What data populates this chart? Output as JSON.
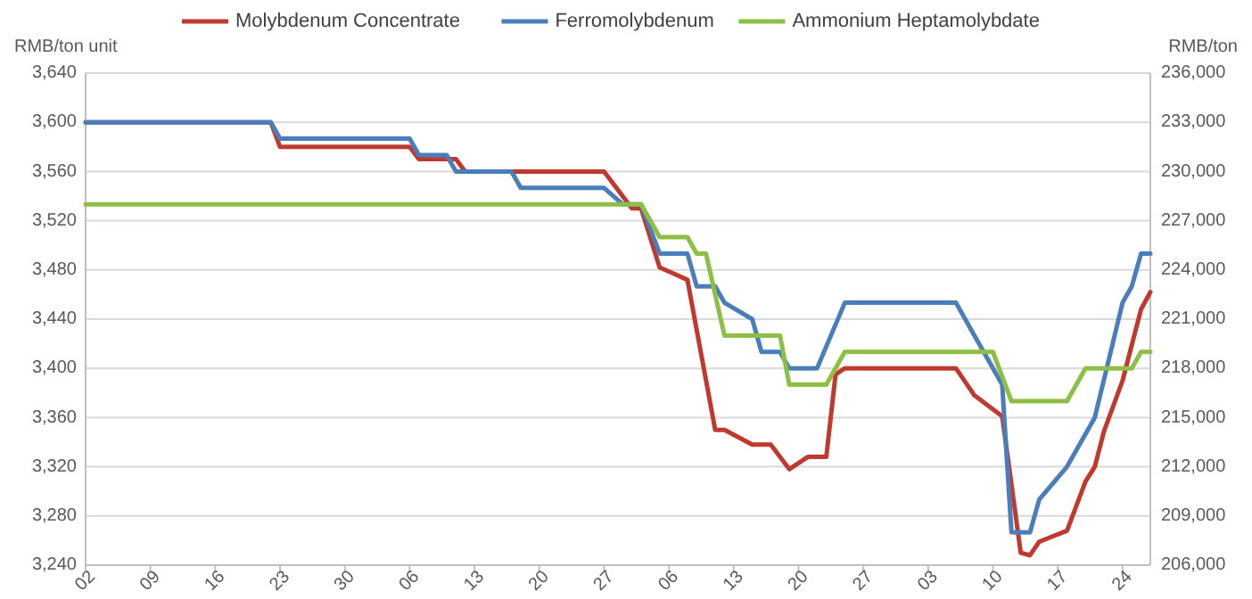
{
  "chart_data": {
    "type": "line",
    "ylabel": "RMB/ton unit",
    "y2label": "RMB/ton",
    "legend": "top",
    "grid": "y",
    "line_style": "solid",
    "marker": "none",
    "xlim": [
      "--01-02",
      "--04-27"
    ],
    "xticks": [
      {
        "value": "--01-02",
        "label": "02"
      },
      {
        "value": "--01-09",
        "label": "09"
      },
      {
        "value": "--01-16",
        "label": "16"
      },
      {
        "value": "--01-23",
        "label": "23"
      },
      {
        "value": "--01-30",
        "label": "30"
      },
      {
        "value": "--02-06",
        "label": "06"
      },
      {
        "value": "--02-13",
        "label": "13"
      },
      {
        "value": "--02-20",
        "label": "20"
      },
      {
        "value": "--02-27",
        "label": "27"
      },
      {
        "value": "--03-06",
        "label": "06"
      },
      {
        "value": "--03-13",
        "label": "13"
      },
      {
        "value": "--03-20",
        "label": "20"
      },
      {
        "value": "--03-27",
        "label": "27"
      },
      {
        "value": "--04-03",
        "label": "03"
      },
      {
        "value": "--04-10",
        "label": "10"
      },
      {
        "value": "--04-17",
        "label": "17"
      },
      {
        "value": "--04-24",
        "label": "24"
      }
    ],
    "ylim": [
      3240,
      3640
    ],
    "yticks": [
      {
        "value": 3240,
        "label": "3,240"
      },
      {
        "value": 3280,
        "label": "3,280"
      },
      {
        "value": 3320,
        "label": "3,320"
      },
      {
        "value": 3360,
        "label": "3,360"
      },
      {
        "value": 3400,
        "label": "3,400"
      },
      {
        "value": 3440,
        "label": "3,440"
      },
      {
        "value": 3480,
        "label": "3,480"
      },
      {
        "value": 3520,
        "label": "3,520"
      },
      {
        "value": 3560,
        "label": "3,560"
      },
      {
        "value": 3600,
        "label": "3,600"
      },
      {
        "value": 3640,
        "label": "3,640"
      }
    ],
    "y2lim": [
      206000,
      236000
    ],
    "y2ticks": [
      {
        "value": 206000,
        "label": "206,000"
      },
      {
        "value": 209000,
        "label": "209,000"
      },
      {
        "value": 212000,
        "label": "212,000"
      },
      {
        "value": 215000,
        "label": "215,000"
      },
      {
        "value": 218000,
        "label": "218,000"
      },
      {
        "value": 221000,
        "label": "221,000"
      },
      {
        "value": 224000,
        "label": "224,000"
      },
      {
        "value": 227000,
        "label": "227,000"
      },
      {
        "value": 230000,
        "label": "230,000"
      },
      {
        "value": 233000,
        "label": "233,000"
      },
      {
        "value": 236000,
        "label": "236,000"
      }
    ],
    "series": [
      {
        "name": "Molybdenum Concentrate",
        "color": "#c0392f",
        "axis": "y",
        "x": [
          "--01-02",
          "--01-22",
          "--01-23",
          "--02-06",
          "--02-07",
          "--02-11",
          "--02-12",
          "--02-27",
          "--03-02",
          "--03-03",
          "--03-05",
          "--03-08",
          "--03-11",
          "--03-12",
          "--03-15",
          "--03-17",
          "--03-19",
          "--03-21",
          "--03-23",
          "--03-24",
          "--03-25",
          "--04-06",
          "--04-08",
          "--04-11",
          "--04-13",
          "--04-14",
          "--04-15",
          "--04-18",
          "--04-20",
          "--04-21",
          "--04-22",
          "--04-24",
          "--04-26",
          "--04-27"
        ],
        "values": [
          3600,
          3600,
          3580,
          3580,
          3570,
          3570,
          3560,
          3560,
          3530,
          3530,
          3482,
          3472,
          3350,
          3350,
          3338,
          3338,
          3318,
          3328,
          3328,
          3395,
          3400,
          3400,
          3378,
          3361,
          3250,
          3248,
          3259,
          3268,
          3308,
          3320,
          3349,
          3390,
          3448,
          3462
        ]
      },
      {
        "name": "Ferromolybdenum",
        "color": "#4a7ebb",
        "axis": "y2",
        "x": [
          "--01-02",
          "--01-22",
          "--01-23",
          "--02-06",
          "--02-07",
          "--02-10",
          "--02-11",
          "--02-17",
          "--02-18",
          "--02-27",
          "--03-01",
          "--03-03",
          "--03-05",
          "--03-08",
          "--03-09",
          "--03-11",
          "--03-12",
          "--03-15",
          "--03-16",
          "--03-18",
          "--03-19",
          "--03-22",
          "--03-25",
          "--04-06",
          "--04-08",
          "--04-11",
          "--04-12",
          "--04-14",
          "--04-15",
          "--04-18",
          "--04-21",
          "--04-24",
          "--04-25",
          "--04-26",
          "--04-27"
        ],
        "values": [
          233000,
          233000,
          232000,
          232000,
          231000,
          231000,
          230000,
          230000,
          229000,
          229000,
          228000,
          228000,
          225000,
          225000,
          223000,
          223000,
          222000,
          221000,
          219000,
          219000,
          218000,
          218000,
          222000,
          222000,
          220000,
          217000,
          208000,
          208000,
          210000,
          212000,
          215000,
          222000,
          223000,
          225000,
          225000
        ]
      },
      {
        "name": "Ammonium Heptamolybdate",
        "color": "#8cbf44",
        "axis": "y2",
        "x": [
          "--01-02",
          "--03-03",
          "--03-05",
          "--03-08",
          "--03-09",
          "--03-10",
          "--03-12",
          "--03-18",
          "--03-19",
          "--03-23",
          "--03-25",
          "--04-10",
          "--04-12",
          "--04-18",
          "--04-20",
          "--04-25",
          "--04-26",
          "--04-27"
        ],
        "values": [
          228000,
          228000,
          226000,
          226000,
          225000,
          225000,
          220000,
          220000,
          217000,
          217000,
          219000,
          219000,
          216000,
          216000,
          218000,
          218000,
          219000,
          219000
        ]
      }
    ]
  }
}
